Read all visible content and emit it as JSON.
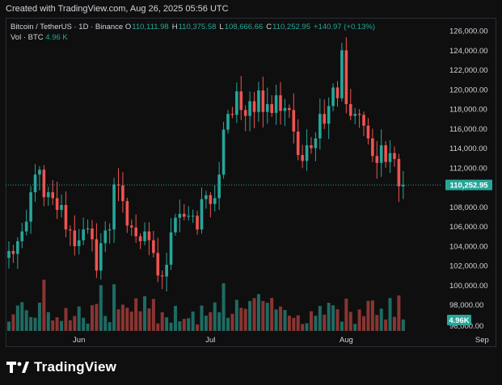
{
  "header": {
    "caption": "Created with TradingView.com, Aug 26, 2025 05:56 UTC"
  },
  "legend": {
    "symbol": "Bitcoin / TetherUS · 1D · Binance",
    "o_label": "O",
    "o_value": "110,111.98",
    "h_label": "H",
    "h_value": "110,375.58",
    "l_label": "L",
    "l_value": "108,666.66",
    "c_label": "C",
    "c_value": "110,252.95",
    "change": "+140.97 (+0.13%)",
    "vol_label": "Vol · BTC",
    "vol_value": "4.96 K"
  },
  "footer": {
    "brand_name": "TradingView"
  },
  "colors": {
    "up": "#26a69a",
    "down": "#ef5350",
    "vol_up": "#1f6b63",
    "vol_down": "#8a3532",
    "background": "#0f0f0f"
  },
  "chart_data": {
    "type": "candlestick",
    "symbol": "BTCUSDT",
    "interval": "1D",
    "exchange": "Binance",
    "x_start": "2025-05-16",
    "price_axis": {
      "min": 96000,
      "max": 126000,
      "ticks": [
        98000,
        100000,
        102000,
        104000,
        106000,
        108000,
        110000,
        112000,
        114000,
        116000,
        118000,
        120000,
        122000,
        124000,
        126000
      ],
      "tick_labels": [
        "98,000.00",
        "100,000.00",
        "102,000.00",
        "104,000.00",
        "106,000.00",
        "108,000.00",
        "110,000.00",
        "112,000.00",
        "114,000.00",
        "116,000.00",
        "118,000.00",
        "120,000.00",
        "122,000.00",
        "124,000.00",
        "126,000.00"
      ]
    },
    "time_axis": {
      "ticks": [
        {
          "label": "Jun",
          "date": "2025-06-01"
        },
        {
          "label": "Jul",
          "date": "2025-07-01"
        },
        {
          "label": "Aug",
          "date": "2025-08-01"
        },
        {
          "label": "Sep",
          "date": "2025-09-01"
        }
      ]
    },
    "last_price": 110252.95,
    "last_price_label": "110,252.95",
    "last_volume_label": "4.96K",
    "closes": [
      103500,
      103200,
      104500,
      105500,
      106500,
      109500,
      111300,
      111800,
      109000,
      109500,
      108900,
      107700,
      108200,
      105700,
      105600,
      104000,
      104600,
      105700,
      105800,
      104700,
      101500,
      104300,
      105600,
      105700,
      110300,
      110200,
      108600,
      106100,
      105900,
      105000,
      104500,
      105500,
      104600,
      103300,
      101000,
      100900,
      102100,
      105400,
      106900,
      107300,
      107000,
      107100,
      107100,
      105700,
      108800,
      109200,
      108300,
      108900,
      111300,
      115900,
      117500,
      117400,
      119800,
      117900,
      117300,
      118800,
      117700,
      119900,
      117700,
      118500,
      117600,
      119400,
      117800,
      118100,
      117900,
      115700,
      113300,
      112700,
      114300,
      114000,
      115000,
      117500,
      116500,
      118300,
      120200,
      119100,
      124000,
      118500,
      117300,
      117500,
      117400,
      116300,
      115000,
      113200,
      112500,
      114300,
      112600,
      113500,
      112900,
      110100,
      110250
    ],
    "volume_axis": {
      "ticks": [
        96000
      ],
      "tick_labels": [
        "96,000.00"
      ]
    }
  }
}
